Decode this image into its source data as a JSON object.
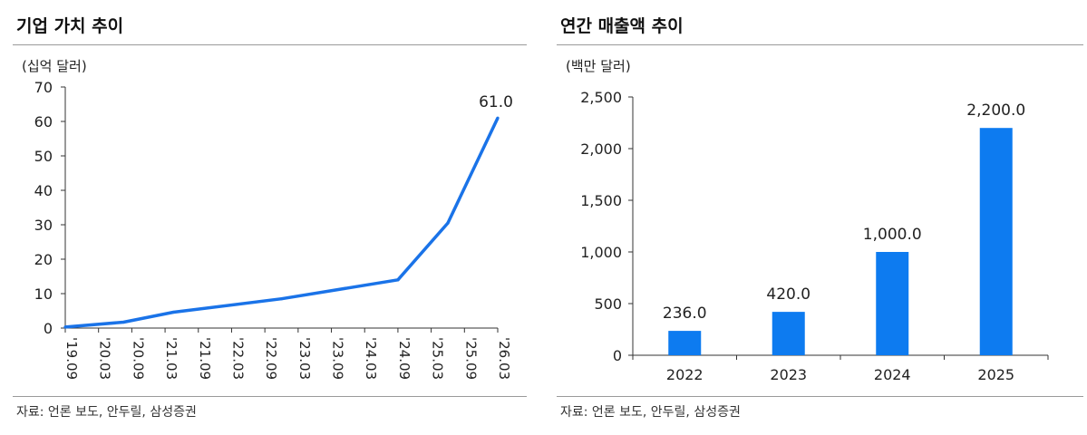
{
  "left": {
    "title": "기업 가치 추이",
    "unit": "(십억 달러)",
    "source": "자료: 언론 보도, 안두릴, 삼성증권"
  },
  "right": {
    "title": "연간 매출액 추이",
    "unit": "(백만 달러)",
    "source": "자료: 언론 보도, 안두릴, 삼성증권"
  },
  "chart_data": [
    {
      "type": "line",
      "title": "기업 가치 추이",
      "ylabel": "(십억 달러)",
      "x": [
        "'19.09",
        "'20.03",
        "'20.09",
        "'21.03",
        "'21.09",
        "'22.03",
        "'22.09",
        "'23.03",
        "'23.09",
        "'24.03",
        "'24.09",
        "'25.03",
        "'25.09",
        "'26.03"
      ],
      "points": [
        {
          "x": 0,
          "y": 0.3
        },
        {
          "x": 1.75,
          "y": 1.7
        },
        {
          "x": 3.25,
          "y": 4.6
        },
        {
          "x": 6.5,
          "y": 8.5
        },
        {
          "x": 10,
          "y": 14
        },
        {
          "x": 11.5,
          "y": 30.5
        },
        {
          "x": 13,
          "y": 61.0
        }
      ],
      "data_labels": [
        {
          "x": 13,
          "y": 61.0,
          "text": "61.0"
        }
      ],
      "ylim": [
        0,
        70
      ],
      "yticks": [
        0,
        10,
        20,
        30,
        40,
        50,
        60,
        70
      ],
      "color": "#1a73e8",
      "grid": false
    },
    {
      "type": "bar",
      "title": "연간 매출액 추이",
      "ylabel": "(백만 달러)",
      "categories": [
        "2022",
        "2023",
        "2024",
        "2025"
      ],
      "values": [
        236.0,
        420.0,
        1000.0,
        2200.0
      ],
      "value_labels": [
        "236.0",
        "420.0",
        "1,000.0",
        "2,200.0"
      ],
      "ylim": [
        0,
        2500
      ],
      "yticks": [
        0,
        500,
        1000,
        1500,
        2000,
        2500
      ],
      "ytick_labels": [
        "0",
        "500",
        "1,000",
        "1,500",
        "2,000",
        "2,500"
      ],
      "color": "#0d7bf0",
      "grid": false
    }
  ]
}
